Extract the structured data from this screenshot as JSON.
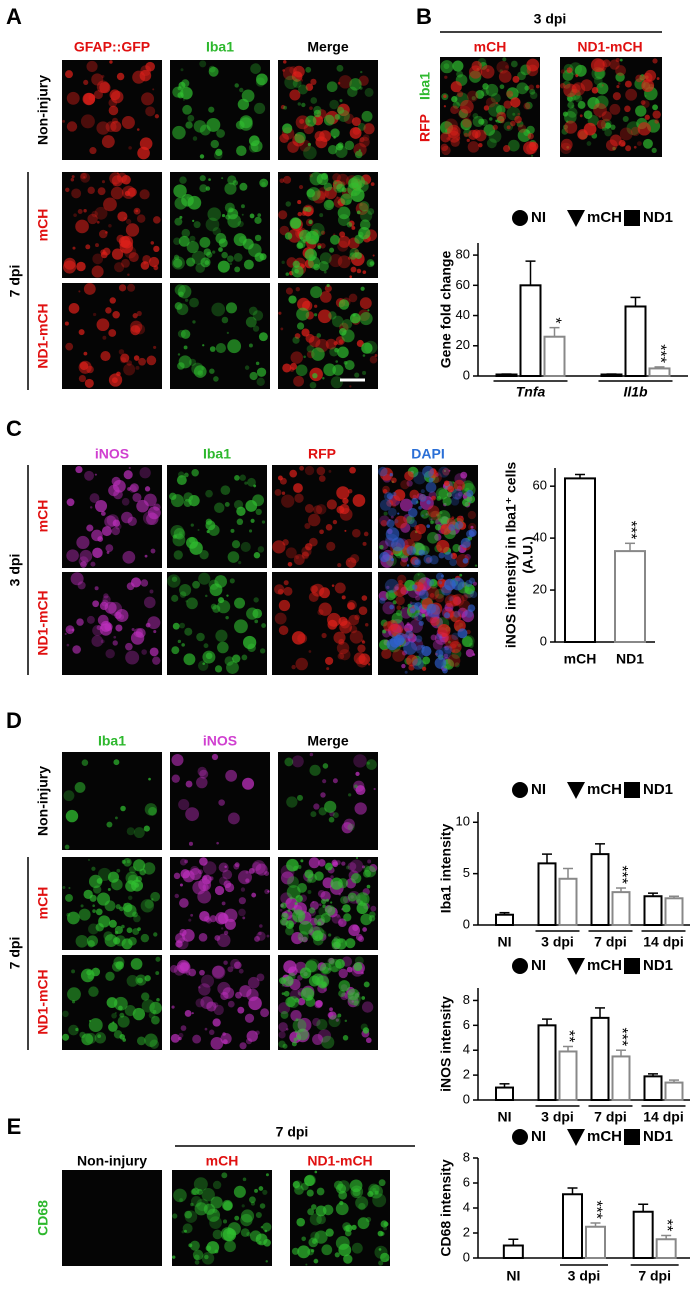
{
  "panel_a": {
    "letter": "A",
    "columns": [
      "GFAP::GFP",
      "Iba1",
      "Merge"
    ],
    "rows": [
      "Non-injury",
      "mCH",
      "ND1-mCH"
    ],
    "group": "7 dpi"
  },
  "panel_b": {
    "letter": "B",
    "group": "3 dpi",
    "columns": [
      "mCH",
      "ND1-mCH"
    ],
    "side_labels": [
      "RFP",
      "Iba1"
    ]
  },
  "panel_c": {
    "letter": "C",
    "columns": [
      "iNOS",
      "Iba1",
      "RFP",
      "DAPI"
    ],
    "rows": [
      "mCH",
      "ND1-mCH"
    ],
    "group": "3 dpi"
  },
  "panel_d": {
    "letter": "D",
    "columns": [
      "Iba1",
      "iNOS",
      "Merge"
    ],
    "rows": [
      "Non-injury",
      "mCH",
      "ND1-mCH"
    ],
    "group": "7 dpi"
  },
  "panel_e": {
    "letter": "E",
    "columns": [
      "Non-injury",
      "mCH",
      "ND1-mCH"
    ],
    "group": "7 dpi",
    "side_label": "CD68"
  },
  "chart_data": [
    {
      "type": "bar",
      "y_label": "Gene fold change",
      "categories": [
        "Tnfa",
        "Il1b"
      ],
      "x_italic": true,
      "series": [
        {
          "name": "NI",
          "marker": "circle",
          "color": "#000",
          "values": [
            1,
            1
          ],
          "errors": [
            0.3,
            0.3
          ]
        },
        {
          "name": "mCH",
          "marker": "triangle-down",
          "color": "#000",
          "values": [
            60,
            46
          ],
          "errors": [
            16,
            6
          ]
        },
        {
          "name": "ND1",
          "marker": "square",
          "color": "#888",
          "values": [
            26,
            5
          ],
          "errors": [
            6,
            1
          ]
        }
      ],
      "ylim": [
        0,
        88
      ],
      "yticks": [
        0,
        20,
        40,
        60,
        80
      ],
      "legend": "top",
      "annotations": [
        {
          "text": "*",
          "category": "Tnfa"
        },
        {
          "text": "***",
          "category": "Il1b"
        }
      ]
    },
    {
      "type": "bar",
      "y_label": [
        "iNOS intensity in Iba1⁺ cells",
        "(A.U.)"
      ],
      "categories": [
        "mCH",
        "ND1"
      ],
      "values": [
        63,
        35
      ],
      "errors": [
        1.5,
        3
      ],
      "colors": [
        "#000",
        "#888"
      ],
      "ylim": [
        0,
        67
      ],
      "yticks": [
        0,
        20,
        40,
        60
      ],
      "annotations": [
        {
          "text": "***",
          "category": "ND1"
        }
      ]
    },
    {
      "type": "bar",
      "y_label": "Iba1 intensity",
      "categories": [
        "NI",
        "3 dpi",
        "7 dpi",
        "14 dpi"
      ],
      "series": [
        {
          "name": "NI",
          "marker": "circle",
          "color": "#000",
          "values": [
            1.0,
            null,
            null,
            null
          ],
          "errors": [
            0.2,
            null,
            null,
            null
          ]
        },
        {
          "name": "mCH",
          "marker": "triangle-down",
          "color": "#000",
          "values": [
            null,
            6.0,
            6.9,
            2.8
          ],
          "errors": [
            null,
            0.9,
            1.0,
            0.3
          ]
        },
        {
          "name": "ND1",
          "marker": "square",
          "color": "#888",
          "values": [
            null,
            4.5,
            3.2,
            2.6
          ],
          "errors": [
            null,
            1.0,
            0.4,
            0.2
          ]
        }
      ],
      "ylim": [
        0,
        11
      ],
      "yticks": [
        0,
        5,
        10
      ],
      "legend": "top",
      "annotations": [
        {
          "text": "***",
          "category": "7 dpi"
        }
      ]
    },
    {
      "type": "bar",
      "y_label": "iNOS intensity",
      "categories": [
        "NI",
        "3 dpi",
        "7 dpi",
        "14 dpi"
      ],
      "series": [
        {
          "name": "NI",
          "marker": "circle",
          "color": "#000",
          "values": [
            1.0,
            null,
            null,
            null
          ],
          "errors": [
            0.3,
            null,
            null,
            null
          ]
        },
        {
          "name": "mCH",
          "marker": "triangle-down",
          "color": "#000",
          "values": [
            null,
            6.0,
            6.6,
            1.9
          ],
          "errors": [
            null,
            0.5,
            0.8,
            0.2
          ]
        },
        {
          "name": "ND1",
          "marker": "square",
          "color": "#888",
          "values": [
            null,
            3.9,
            3.5,
            1.4
          ],
          "errors": [
            null,
            0.4,
            0.5,
            0.2
          ]
        }
      ],
      "ylim": [
        0,
        9
      ],
      "yticks": [
        0,
        2,
        4,
        6,
        8
      ],
      "legend": "top",
      "annotations": [
        {
          "text": "**",
          "category": "3 dpi"
        },
        {
          "text": "***",
          "category": "7 dpi"
        }
      ]
    },
    {
      "type": "bar",
      "y_label": "CD68 intensity",
      "categories": [
        "NI",
        "3 dpi",
        "7 dpi"
      ],
      "series": [
        {
          "name": "NI",
          "marker": "circle",
          "color": "#000",
          "values": [
            1.0,
            null,
            null
          ],
          "errors": [
            0.5,
            null,
            null
          ]
        },
        {
          "name": "mCH",
          "marker": "triangle-down",
          "color": "#000",
          "values": [
            null,
            5.1,
            3.7
          ],
          "errors": [
            null,
            0.5,
            0.6
          ]
        },
        {
          "name": "ND1",
          "marker": "square",
          "color": "#888",
          "values": [
            null,
            2.5,
            1.5
          ],
          "errors": [
            null,
            0.3,
            0.3
          ]
        }
      ],
      "ylim": [
        0,
        8
      ],
      "yticks": [
        0,
        2,
        4,
        6,
        8
      ],
      "legend": "top",
      "annotations": [
        {
          "text": "***",
          "category": "3 dpi"
        },
        {
          "text": "**",
          "category": "7 dpi"
        }
      ]
    }
  ]
}
